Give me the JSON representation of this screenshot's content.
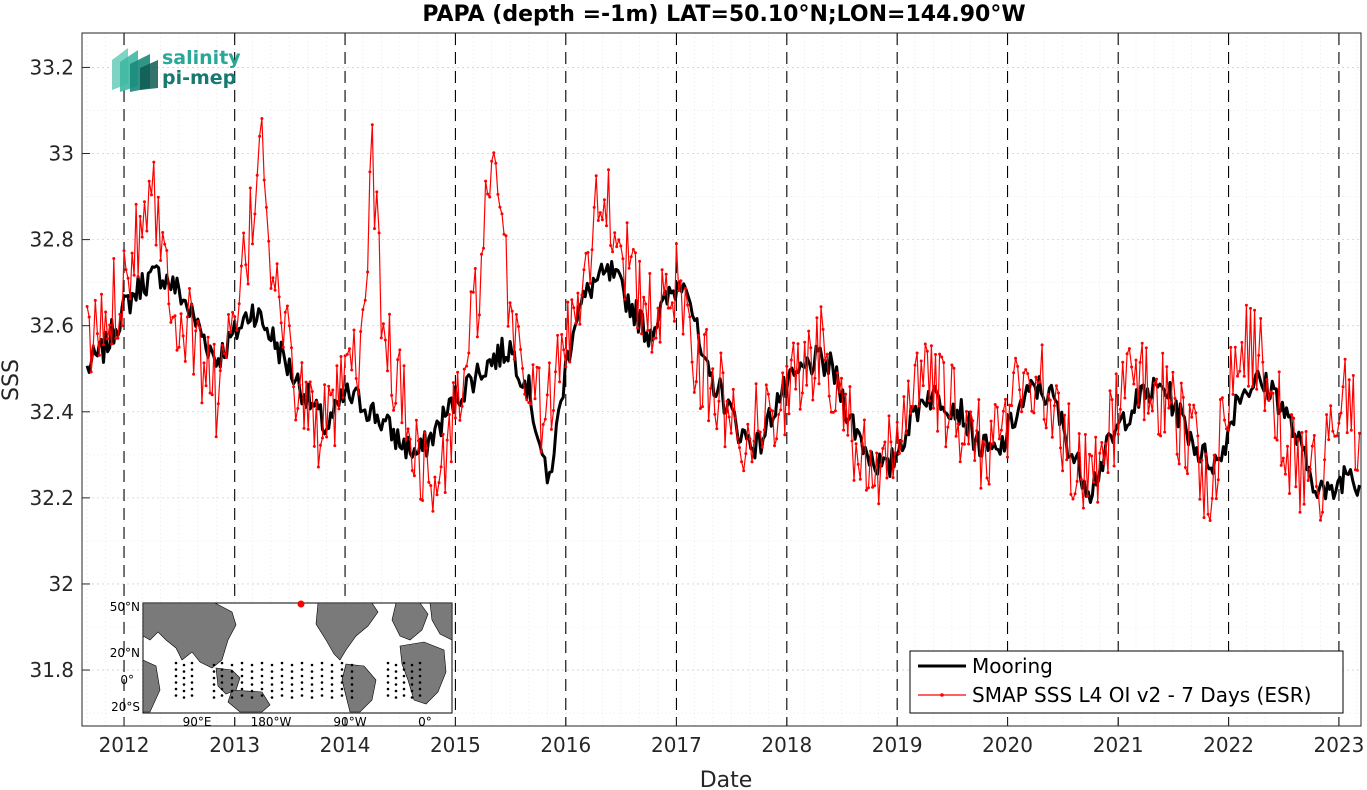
{
  "chart_data": {
    "type": "line",
    "title": "PAPA (depth =-1m) LAT=50.10°N;LON=144.90°W",
    "xlabel": "Date",
    "ylabel": "SSS",
    "xlim": [
      "2011-08-15",
      "2023-03-15"
    ],
    "ylim": [
      31.67,
      33.28
    ],
    "yticks": [
      31.8,
      32,
      32.2,
      32.4,
      32.6,
      32.8,
      33,
      33.2
    ],
    "ytick_labels": [
      "31.8",
      "32",
      "32.2",
      "32.4",
      "32.6",
      "32.8",
      "33",
      "33.2"
    ],
    "xticks": [
      "2012-01-01",
      "2013-01-01",
      "2014-01-01",
      "2015-01-01",
      "2016-01-01",
      "2017-01-01",
      "2018-01-01",
      "2019-01-01",
      "2020-01-01",
      "2021-01-01",
      "2022-01-01",
      "2023-01-01"
    ],
    "xtick_labels": [
      "2012",
      "2013",
      "2014",
      "2015",
      "2016",
      "2017",
      "2018",
      "2019",
      "2020",
      "2021",
      "2022",
      "2023"
    ],
    "grid": true,
    "year_boundary_lines": "dashed",
    "legend_position": "bottom-right",
    "series": [
      {
        "name": "Mooring",
        "color": "#000000",
        "style": "thick line",
        "x": [
          "2011-09-01",
          "2011-11-01",
          "2012-01-01",
          "2012-03-01",
          "2012-05-01",
          "2012-07-01",
          "2012-09-01",
          "2012-11-01",
          "2013-01-01",
          "2013-03-01",
          "2013-05-01",
          "2013-07-01",
          "2013-09-01",
          "2013-11-01",
          "2014-01-01",
          "2014-03-01",
          "2014-05-01",
          "2014-07-01",
          "2014-09-01",
          "2014-11-01",
          "2015-01-01",
          "2015-03-01",
          "2015-05-01",
          "2015-07-01",
          "2015-09-01",
          "2015-10-15",
          "2015-11-01",
          "2015-12-01",
          "2015-12-31",
          "2016-02-01",
          "2016-04-01",
          "2016-06-01",
          "2016-08-01",
          "2016-10-01",
          "2016-12-01",
          "2017-02-01",
          "2017-04-01",
          "2017-06-01",
          "2017-08-01",
          "2017-10-01",
          "2017-12-01",
          "2018-02-01",
          "2018-04-01",
          "2018-06-01",
          "2018-08-01",
          "2018-10-01",
          "2018-12-01",
          "2019-02-01",
          "2019-04-01",
          "2019-06-01",
          "2019-08-01",
          "2019-10-01",
          "2019-12-01",
          "2020-02-01",
          "2020-04-01",
          "2020-06-01",
          "2020-08-01",
          "2020-10-01",
          "2020-12-01",
          "2021-02-01",
          "2021-04-01",
          "2021-06-01",
          "2021-08-01",
          "2021-10-01",
          "2021-12-01",
          "2022-02-01",
          "2022-04-01",
          "2022-06-01",
          "2022-08-01",
          "2022-10-01",
          "2022-12-01",
          "2023-02-01",
          "2023-03-10"
        ],
        "values": [
          32.5,
          32.55,
          32.64,
          32.7,
          32.72,
          32.68,
          32.6,
          32.52,
          32.58,
          32.64,
          32.58,
          32.5,
          32.43,
          32.36,
          32.44,
          32.42,
          32.38,
          32.33,
          32.3,
          32.36,
          32.43,
          32.48,
          32.52,
          32.55,
          32.45,
          32.3,
          32.22,
          32.35,
          32.5,
          32.62,
          32.7,
          32.72,
          32.65,
          32.58,
          32.66,
          32.72,
          32.5,
          32.44,
          32.35,
          32.32,
          32.43,
          32.48,
          32.52,
          32.5,
          32.38,
          32.3,
          32.26,
          32.36,
          32.44,
          32.43,
          32.4,
          32.32,
          32.3,
          32.4,
          32.46,
          32.43,
          32.3,
          32.22,
          32.32,
          32.4,
          32.44,
          32.46,
          32.38,
          32.3,
          32.28,
          32.44,
          32.47,
          32.45,
          32.36,
          32.25,
          32.2,
          32.27,
          32.23
        ]
      },
      {
        "name": "SMAP SSS L4 OI v2 - 7 Days (ESR)",
        "color": "#ff0000",
        "style": "thin line with dot markers",
        "x": [
          "2011-09-01",
          "2011-11-01",
          "2012-01-01",
          "2012-03-01",
          "2012-04-01",
          "2012-05-01",
          "2012-07-01",
          "2012-09-01",
          "2012-11-01",
          "2013-01-01",
          "2013-03-01",
          "2013-04-01",
          "2013-05-01",
          "2013-07-01",
          "2013-09-01",
          "2013-11-01",
          "2014-01-01",
          "2014-03-01",
          "2014-04-01",
          "2014-05-01",
          "2014-07-01",
          "2014-09-01",
          "2014-11-01",
          "2015-01-01",
          "2015-03-01",
          "2015-05-01",
          "2015-07-01",
          "2015-09-01",
          "2015-11-01",
          "2016-01-01",
          "2016-03-01",
          "2016-05-01",
          "2016-07-01",
          "2016-09-01",
          "2016-11-01",
          "2017-01-01",
          "2017-03-01",
          "2017-05-01",
          "2017-07-01",
          "2017-09-01",
          "2017-11-01",
          "2018-01-01",
          "2018-03-01",
          "2018-05-01",
          "2018-07-01",
          "2018-09-01",
          "2018-11-01",
          "2019-01-01",
          "2019-03-01",
          "2019-05-01",
          "2019-07-01",
          "2019-09-01",
          "2019-11-01",
          "2020-01-01",
          "2020-03-01",
          "2020-05-01",
          "2020-07-01",
          "2020-09-01",
          "2020-11-01",
          "2021-01-01",
          "2021-03-01",
          "2021-05-01",
          "2021-07-01",
          "2021-09-01",
          "2021-11-01",
          "2022-01-01",
          "2022-03-01",
          "2022-05-01",
          "2022-07-01",
          "2022-09-01",
          "2022-11-01",
          "2023-01-01",
          "2023-03-10"
        ],
        "values": [
          32.55,
          32.6,
          32.72,
          32.85,
          32.98,
          32.8,
          32.62,
          32.55,
          32.45,
          32.58,
          32.85,
          33.1,
          32.75,
          32.52,
          32.4,
          32.35,
          32.45,
          32.55,
          33.04,
          32.6,
          32.45,
          32.3,
          32.2,
          32.4,
          32.6,
          32.95,
          32.65,
          32.45,
          32.4,
          32.55,
          32.75,
          32.92,
          32.8,
          32.65,
          32.6,
          32.72,
          32.55,
          32.45,
          32.4,
          32.35,
          32.4,
          32.45,
          32.5,
          32.55,
          32.45,
          32.3,
          32.2,
          32.35,
          32.5,
          32.45,
          32.4,
          32.35,
          32.3,
          32.4,
          32.5,
          32.45,
          32.35,
          32.25,
          32.3,
          32.4,
          32.5,
          32.45,
          32.4,
          32.35,
          32.2,
          32.45,
          32.55,
          32.5,
          32.35,
          32.25,
          32.25,
          32.45,
          32.35
        ]
      }
    ],
    "inset_map": {
      "lat_labels": [
        "50°N",
        "20°N",
        "0°",
        "20°S"
      ],
      "lon_labels": [
        "90°E",
        "180°W",
        "90°W",
        "0°"
      ],
      "marker_color": "#ff0000"
    }
  },
  "logo": {
    "line1": "salinity",
    "line2": "pi-mep"
  }
}
